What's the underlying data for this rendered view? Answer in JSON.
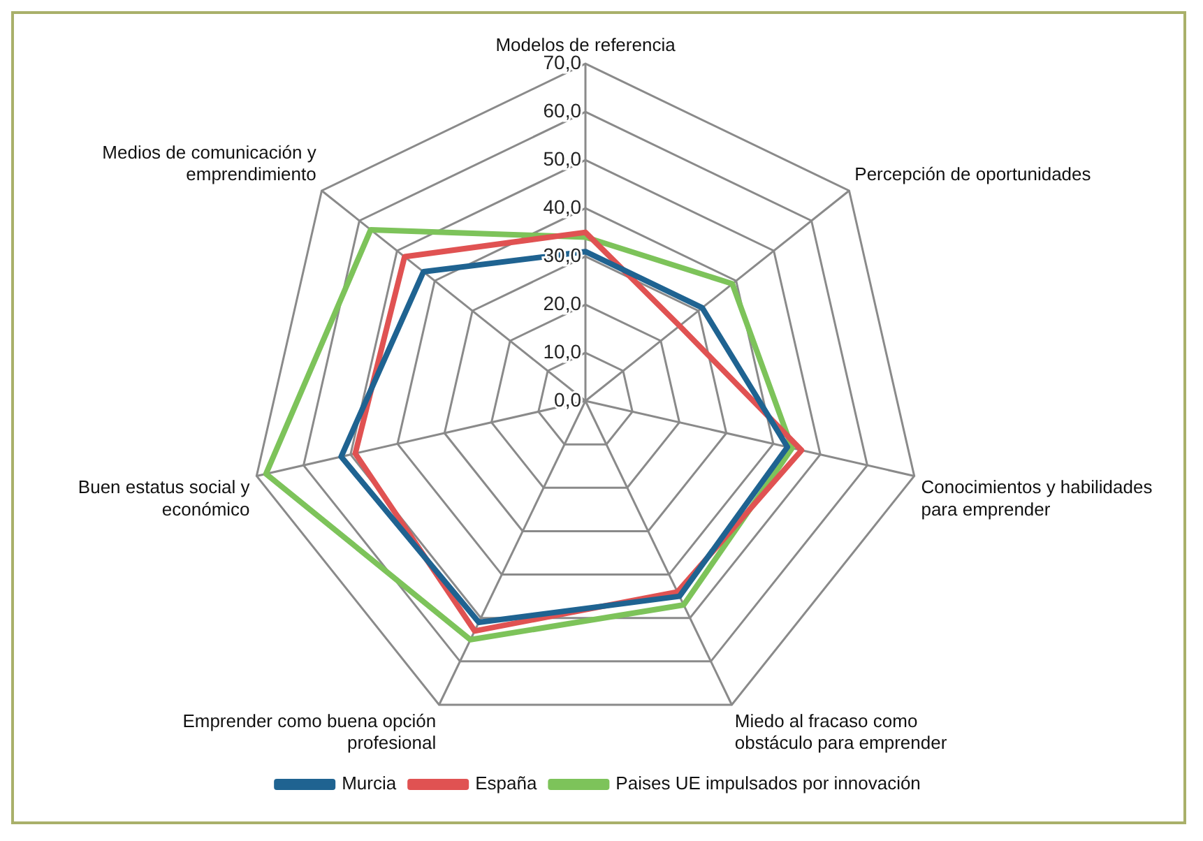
{
  "chart_data": {
    "type": "radar",
    "categories": [
      "Modelos de referencia",
      "Percepción de oportunidades",
      "Conocimientos y habilidades para emprender",
      "Miedo al fracaso como obstáculo para emprender",
      "Emprender como buena opción profesional",
      "Buen estatus social y económico",
      "Medios de comunicación y emprendimiento"
    ],
    "series": [
      {
        "name": "Murcia",
        "color": "#1f6391",
        "values": [
          31,
          31,
          43,
          45,
          51,
          52,
          43
        ]
      },
      {
        "name": "España",
        "color": "#e05252",
        "values": [
          35,
          25,
          46,
          44,
          53,
          49,
          48
        ]
      },
      {
        "name": "Paises UE impulsados por innovación",
        "color": "#7dc35a",
        "values": [
          34,
          39,
          44,
          47,
          55,
          68,
          57
        ]
      }
    ],
    "ylim": [
      0,
      70
    ],
    "yticks": [
      {
        "value": 0,
        "label": "0,0"
      },
      {
        "value": 10,
        "label": "10,0"
      },
      {
        "value": 20,
        "label": "20,0"
      },
      {
        "value": 30,
        "label": "30,0"
      },
      {
        "value": 40,
        "label": "40,0"
      },
      {
        "value": 50,
        "label": "50,0"
      },
      {
        "value": 60,
        "label": "60,0"
      },
      {
        "value": 70,
        "label": "70,0"
      }
    ],
    "grid": true,
    "legend": "bottom",
    "marker": "none",
    "line_style": "solid"
  }
}
